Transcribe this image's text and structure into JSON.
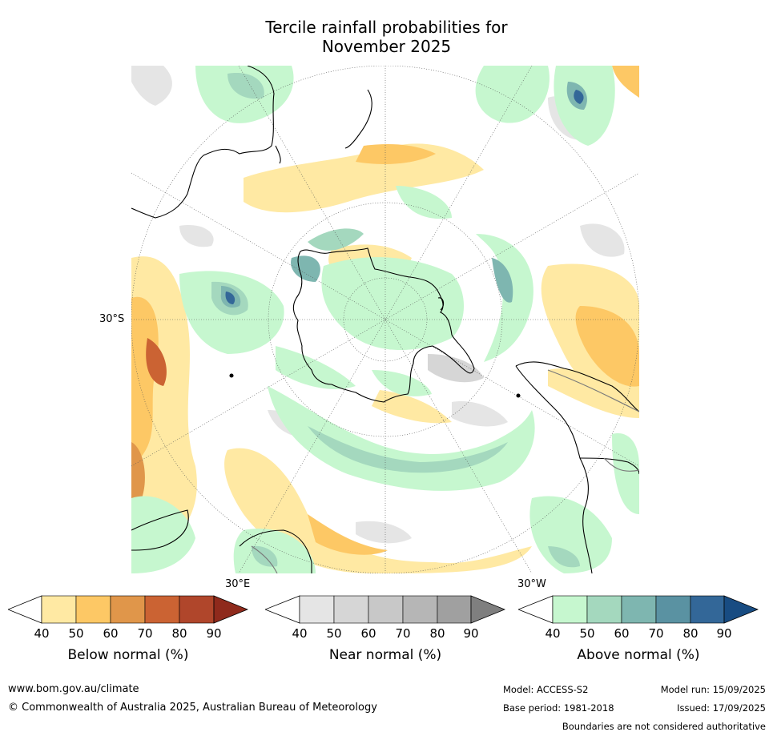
{
  "title": {
    "line1": "Tercile rainfall probabilities for",
    "line2": "November 2025"
  },
  "map": {
    "projection": "south-polar-stereographic",
    "labels": {
      "lat": "30°S",
      "lon_east": "30°E",
      "lon_west": "30°W"
    },
    "colors": {
      "below": [
        "#ffe9a3",
        "#fdc865",
        "#e0964a",
        "#cb6333",
        "#b0462b",
        "#8f2a1c"
      ],
      "near": [
        "#e5e5e5",
        "#d6d6d6",
        "#c8c8c8",
        "#b6b6b6",
        "#a0a0a0",
        "#7f7f7f"
      ],
      "above": [
        "#c6f7cf",
        "#a4d8be",
        "#7eb6b0",
        "#5a92a2",
        "#336798",
        "#184c82"
      ]
    }
  },
  "colorbars": [
    {
      "id": "below",
      "title": "Below normal (%)",
      "ticks": [
        "40",
        "50",
        "60",
        "70",
        "80",
        "90"
      ]
    },
    {
      "id": "near",
      "title": "Near normal (%)",
      "ticks": [
        "40",
        "50",
        "60",
        "70",
        "80",
        "90"
      ]
    },
    {
      "id": "above",
      "title": "Above normal (%)",
      "ticks": [
        "40",
        "50",
        "60",
        "70",
        "80",
        "90"
      ]
    }
  ],
  "footer": {
    "website": "www.bom.gov.au/climate",
    "copyright": "© Commonwealth of Australia 2025, Australian Bureau of Meteorology",
    "model": "Model: ACCESS-S2",
    "base_period": "Base period: 1981-2018",
    "model_run": "Model run: 15/09/2025",
    "issued": "Issued: 17/09/2025",
    "disclaimer": "Boundaries are not considered authoritative"
  }
}
